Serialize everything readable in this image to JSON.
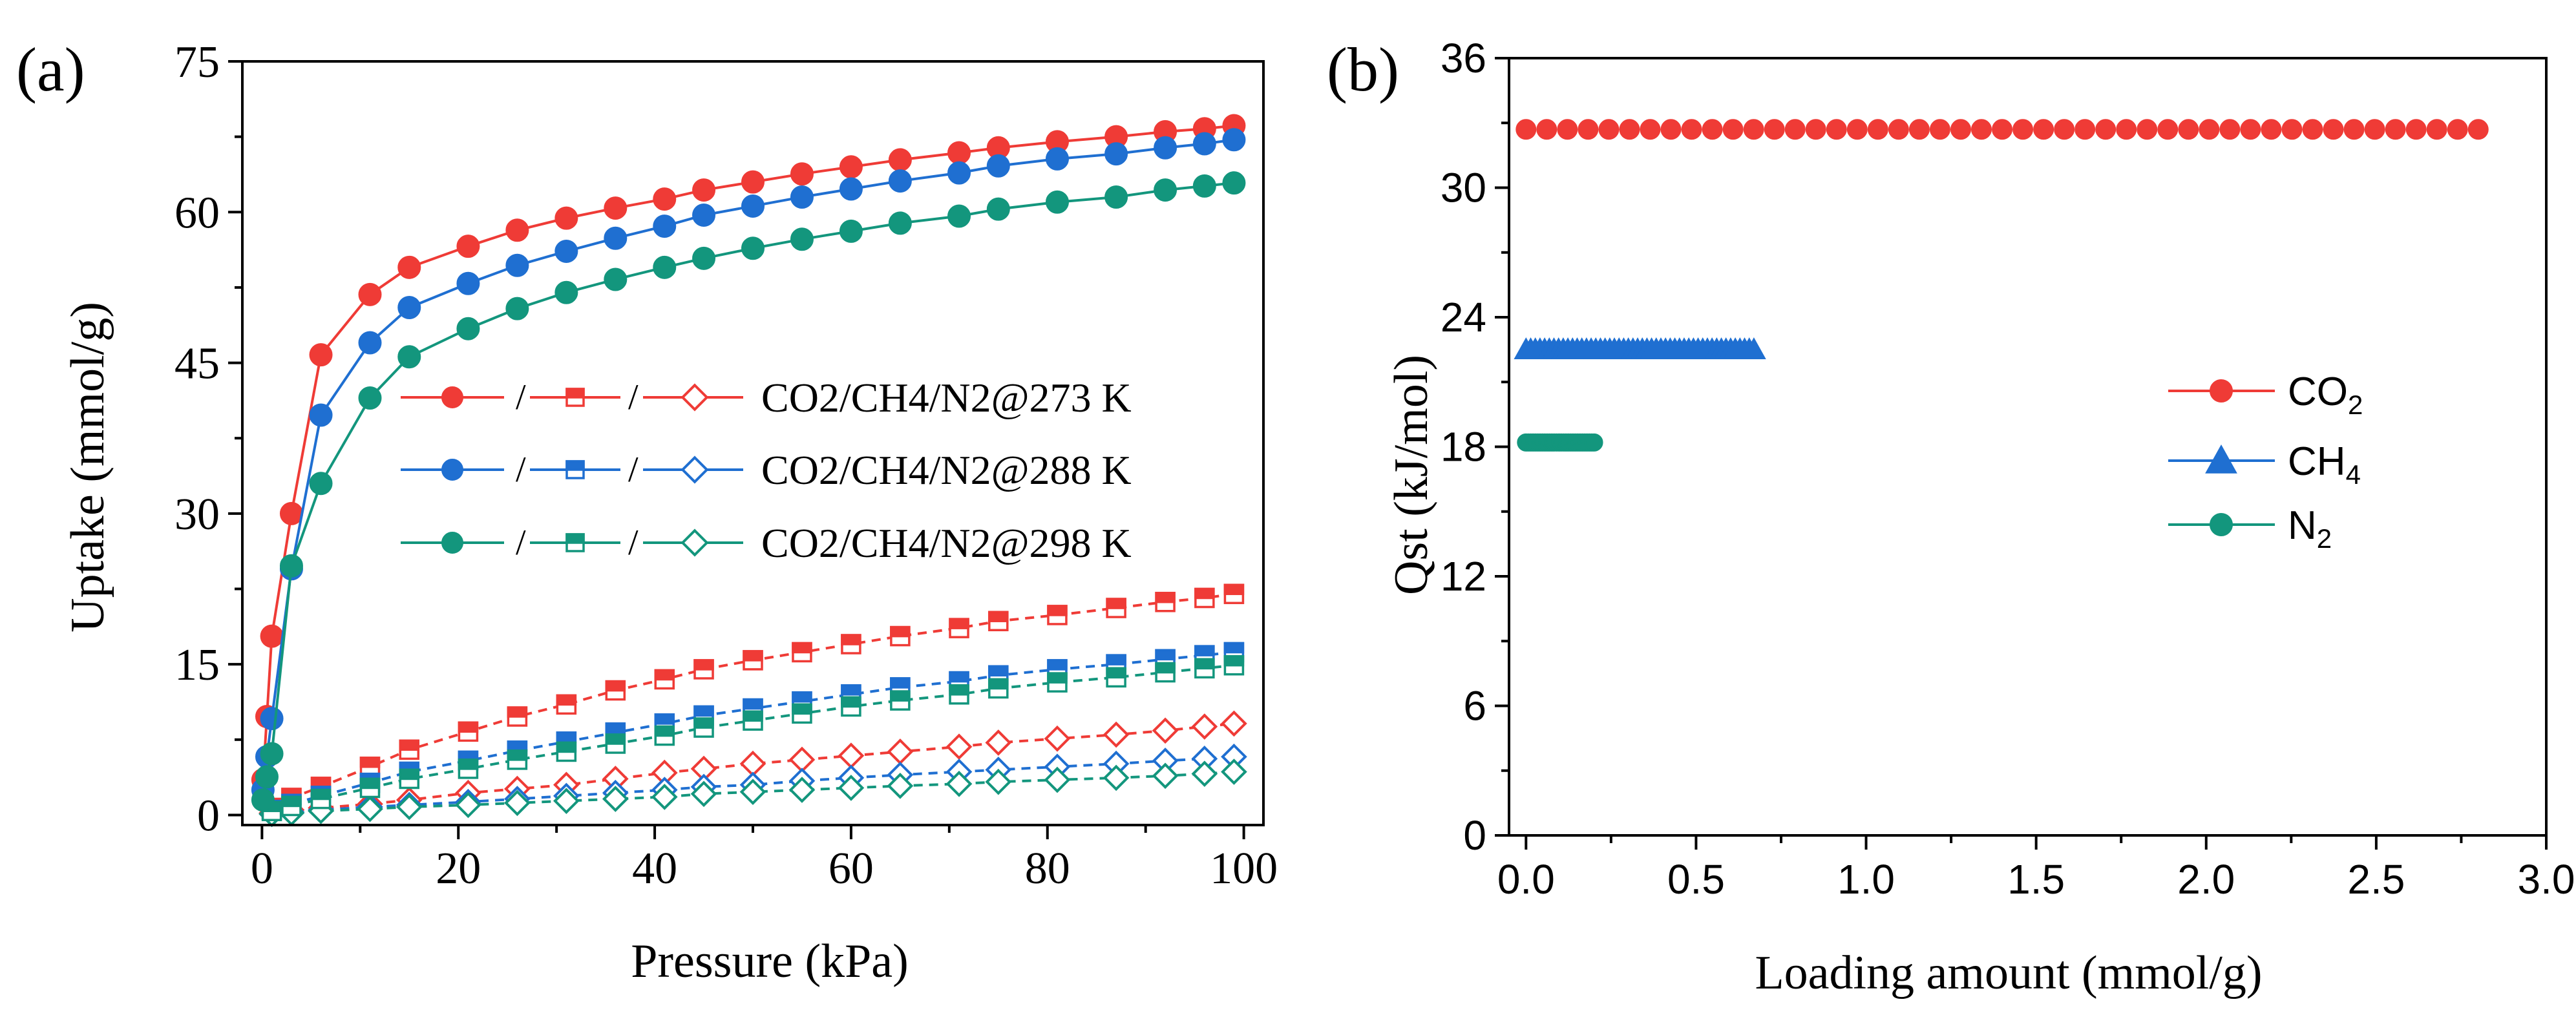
{
  "chart_data": [
    {
      "panel": "(a)",
      "type": "line",
      "xlabel": "Pressure (kPa)",
      "ylabel": "Uptake (mmol/g)",
      "xlim": [
        -2,
        102
      ],
      "ylim": [
        -1,
        75
      ],
      "xticks": [
        0,
        20,
        40,
        60,
        80,
        100
      ],
      "yticks": [
        0,
        15,
        30,
        45,
        60,
        75
      ],
      "legend_position": "center",
      "legend": [
        {
          "label": "CO2/CH4/N2@273 K",
          "color": "#ef3b36"
        },
        {
          "label": "CO2/CH4/N2@288 K",
          "color": "#1f6fd1"
        },
        {
          "label": "CO2/CH4/N2@298 K",
          "color": "#13967d"
        }
      ],
      "x": [
        0.1,
        0.5,
        1,
        3,
        6,
        11,
        15,
        21,
        26,
        31,
        36,
        41,
        45,
        50,
        55,
        60,
        65,
        71,
        75,
        81,
        87,
        92,
        96,
        99
      ],
      "series": [
        {
          "name": "CO2@273 K",
          "gas": "CO2",
          "temp": "273 K",
          "marker": "filled-circle",
          "color": "#ef3b36",
          "values": [
            3.5,
            9.8,
            17.8,
            30.0,
            45.8,
            51.8,
            54.5,
            56.6,
            58.2,
            59.4,
            60.4,
            61.3,
            62.2,
            63.0,
            63.8,
            64.5,
            65.2,
            65.9,
            66.4,
            67.0,
            67.5,
            68.0,
            68.3,
            68.6
          ]
        },
        {
          "name": "CO2@288 K",
          "gas": "CO2",
          "temp": "288 K",
          "marker": "filled-circle",
          "color": "#1f6fd1",
          "values": [
            2.5,
            5.8,
            9.6,
            24.5,
            39.8,
            47.0,
            50.5,
            52.9,
            54.7,
            56.1,
            57.4,
            58.6,
            59.7,
            60.6,
            61.5,
            62.3,
            63.1,
            63.9,
            64.6,
            65.3,
            65.8,
            66.4,
            66.8,
            67.2
          ]
        },
        {
          "name": "CO2@298 K",
          "gas": "CO2",
          "temp": "298 K",
          "marker": "filled-circle",
          "color": "#13967d",
          "values": [
            1.5,
            3.8,
            6.1,
            24.8,
            33.0,
            41.5,
            45.6,
            48.4,
            50.4,
            52.0,
            53.3,
            54.5,
            55.4,
            56.4,
            57.3,
            58.1,
            58.9,
            59.6,
            60.3,
            61.0,
            61.5,
            62.2,
            62.6,
            62.9
          ]
        },
        {
          "name": "CH4@273 K",
          "gas": "CH4",
          "temp": "273 K",
          "marker": "half-square",
          "color": "#ef3b36",
          "values": [
            0.1,
            0.3,
            0.7,
            1.7,
            2.8,
            4.8,
            6.5,
            8.3,
            9.8,
            11.0,
            12.4,
            13.5,
            14.5,
            15.4,
            16.2,
            17.0,
            17.8,
            18.6,
            19.3,
            19.9,
            20.6,
            21.2,
            21.6,
            22.0
          ]
        },
        {
          "name": "CH4@288 K",
          "gas": "CH4",
          "temp": "288 K",
          "marker": "half-square",
          "color": "#1f6fd1",
          "values": [
            0.1,
            0.2,
            0.5,
            1.1,
            1.9,
            3.2,
            4.3,
            5.4,
            6.4,
            7.3,
            8.2,
            9.1,
            9.9,
            10.6,
            11.3,
            12.0,
            12.7,
            13.3,
            13.9,
            14.5,
            15.0,
            15.5,
            15.9,
            16.2
          ]
        },
        {
          "name": "CH4@298 K",
          "gas": "CH4",
          "temp": "298 K",
          "marker": "half-square",
          "color": "#13967d",
          "values": [
            0.1,
            0.2,
            0.4,
            0.9,
            1.6,
            2.7,
            3.6,
            4.6,
            5.5,
            6.3,
            7.1,
            7.9,
            8.7,
            9.4,
            10.1,
            10.8,
            11.4,
            12.0,
            12.6,
            13.2,
            13.7,
            14.2,
            14.6,
            14.9
          ]
        },
        {
          "name": "N2@273 K",
          "gas": "N2",
          "temp": "273 K",
          "marker": "open-diamond",
          "color": "#ef3b36",
          "values": [
            0.0,
            0.1,
            0.2,
            0.5,
            0.7,
            1.1,
            1.5,
            2.2,
            2.6,
            3.0,
            3.6,
            4.2,
            4.6,
            5.1,
            5.5,
            5.9,
            6.3,
            6.8,
            7.2,
            7.6,
            8.0,
            8.4,
            8.8,
            9.1
          ]
        },
        {
          "name": "N2@288 K",
          "gas": "N2",
          "temp": "288 K",
          "marker": "open-diamond",
          "color": "#1f6fd1",
          "values": [
            0.0,
            0.1,
            0.1,
            0.3,
            0.5,
            0.8,
            1.0,
            1.3,
            1.6,
            1.9,
            2.2,
            2.5,
            2.8,
            3.0,
            3.4,
            3.7,
            4.0,
            4.3,
            4.5,
            4.8,
            5.1,
            5.4,
            5.6,
            5.8
          ]
        },
        {
          "name": "N2@298 K",
          "gas": "N2",
          "temp": "298 K",
          "marker": "open-diamond",
          "color": "#13967d",
          "values": [
            0.0,
            0.0,
            0.1,
            0.2,
            0.4,
            0.6,
            0.8,
            1.0,
            1.2,
            1.4,
            1.6,
            1.8,
            2.1,
            2.3,
            2.5,
            2.7,
            2.9,
            3.1,
            3.3,
            3.5,
            3.7,
            3.9,
            4.1,
            4.3
          ]
        }
      ]
    },
    {
      "panel": "(b)",
      "type": "scatter",
      "xlabel": "Loading amount (mmol/g)",
      "ylabel": "Qst (kJ/mol)",
      "xlim": [
        -0.05,
        3.0
      ],
      "ylim": [
        0,
        36
      ],
      "xticks": [
        0.0,
        0.5,
        1.0,
        1.5,
        2.0,
        2.5,
        3.0
      ],
      "xtick_labels": [
        "0.0",
        "0.5",
        "1.0",
        "1.5",
        "2.0",
        "2.5",
        "3.0"
      ],
      "yticks": [
        0,
        6,
        12,
        18,
        24,
        30,
        36
      ],
      "legend_position": "center-right",
      "series": [
        {
          "name": "CO2",
          "legend_main": "CO",
          "legend_sub": "2",
          "marker": "circle",
          "color": "#ef3b36",
          "value": 32.7,
          "x_start": 0.0,
          "x_end": 2.8,
          "count": 47
        },
        {
          "name": "CH4",
          "legend_main": "CH",
          "legend_sub": "4",
          "marker": "triangle",
          "color": "#1f6fd1",
          "value": 22.5,
          "x_start": 0.0,
          "x_end": 0.67,
          "count": 50
        },
        {
          "name": "N2",
          "legend_main": "N",
          "legend_sub": "2",
          "marker": "circle",
          "color": "#13967d",
          "value": 18.2,
          "x_start": 0.0,
          "x_end": 0.2,
          "count": 30
        }
      ]
    }
  ]
}
